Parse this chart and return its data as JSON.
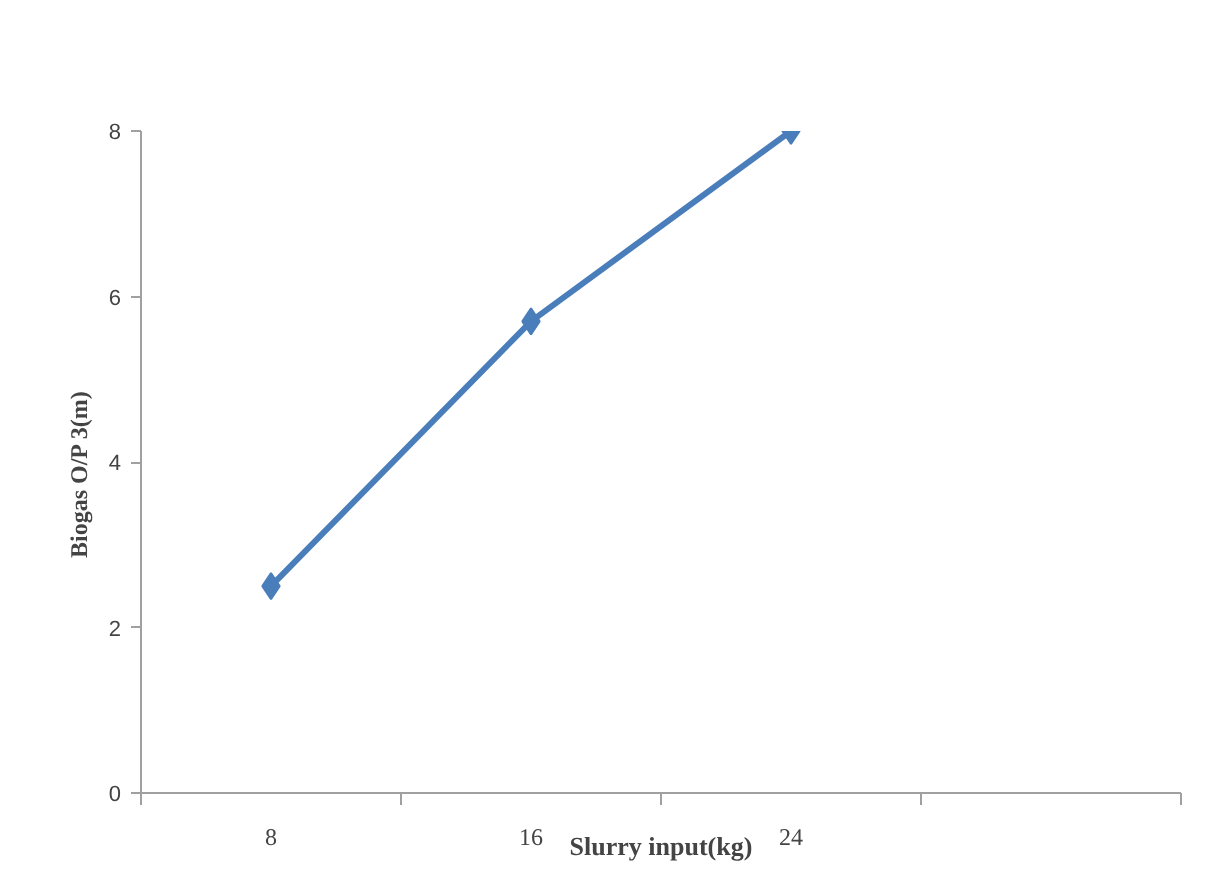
{
  "chart_data": {
    "type": "line",
    "xlabel": "Slurry input(kg)",
    "ylabel": "Biogas   O/P   3(m)",
    "categories": [
      "8",
      "16",
      "24",
      null
    ],
    "series": [
      {
        "color": "#4a7ebb",
        "values": [
          2.5,
          5.7,
          8,
          null
        ]
      }
    ],
    "ylim": [
      0,
      8
    ],
    "yticks": [
      0,
      2,
      4,
      6,
      8
    ],
    "grid": false,
    "marker": "diamond",
    "line_style": "solid"
  }
}
